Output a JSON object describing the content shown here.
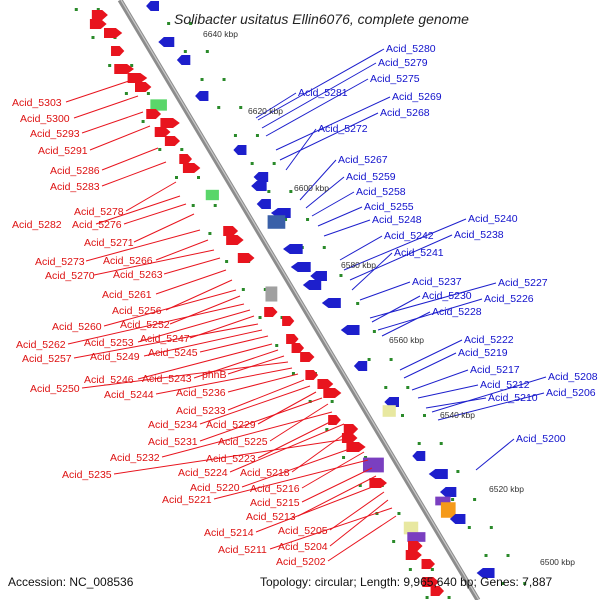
{
  "title": "Solibacter usitatus Ellin6076, complete genome",
  "accession": "Accession: NC_008536",
  "summary": "Topology: circular; Length: 9,965,640 bp; Genes: 7,887",
  "colors": {
    "forward": "#e8141e",
    "reverse": "#1d1fcc",
    "backbone": "#8c8c8c",
    "tick": "#2a8a2a"
  },
  "scale_labels": [
    "6640 kbp",
    "6620 kbp",
    "6600 kbp",
    "6580 kbp",
    "6560 kbp",
    "6540 kbp",
    "6520 kbp",
    "6500 kbp"
  ],
  "left_labels": [
    "Acid_5303",
    "Acid_5300",
    "Acid_5293",
    "Acid_5291",
    "Acid_5286",
    "Acid_5283",
    "Acid_5278",
    "Acid_5282",
    "Acid_5276",
    "Acid_5271",
    "Acid_5273",
    "Acid_5266",
    "Acid_5270",
    "Acid_5263",
    "Acid_5261",
    "Acid_5256",
    "Acid_5260",
    "Acid_5252",
    "Acid_5262",
    "Acid_5253",
    "Acid_5247",
    "Acid_5257",
    "Acid_5249",
    "Acid_5245",
    "Acid_5246",
    "Acid_5243",
    "phhB",
    "Acid_5250",
    "Acid_5244",
    "Acid_5236",
    "Acid_5233",
    "Acid_5234",
    "Acid_5229",
    "Acid_5231",
    "Acid_5225",
    "Acid_5232",
    "Acid_5223",
    "Acid_5224",
    "Acid_5218",
    "Acid_5235",
    "Acid_5220",
    "Acid_5216",
    "Acid_5221",
    "Acid_5215",
    "Acid_5213",
    "Acid_5214",
    "Acid_5205",
    "Acid_5204",
    "Acid_5211",
    "Acid_5202"
  ],
  "right_labels": [
    "Acid_5280",
    "Acid_5279",
    "Acid_5275",
    "Acid_5281",
    "Acid_5269",
    "Acid_5268",
    "Acid_5272",
    "Acid_5267",
    "Acid_5259",
    "Acid_5258",
    "Acid_5255",
    "Acid_5248",
    "Acid_5240",
    "Acid_5242",
    "Acid_5238",
    "Acid_5241",
    "Acid_5237",
    "Acid_5227",
    "Acid_5230",
    "Acid_5226",
    "Acid_5228",
    "Acid_5222",
    "Acid_5219",
    "Acid_5217",
    "Acid_5212",
    "Acid_5208",
    "Acid_5210",
    "Acid_5206",
    "Acid_5200"
  ]
}
